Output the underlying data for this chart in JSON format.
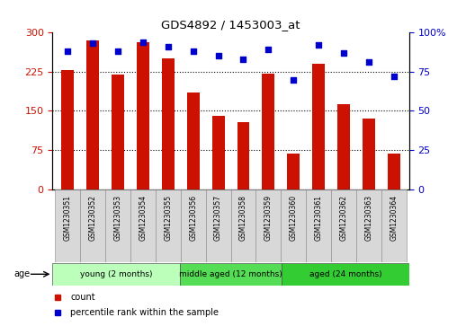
{
  "title": "GDS4892 / 1453003_at",
  "samples": [
    "GSM1230351",
    "GSM1230352",
    "GSM1230353",
    "GSM1230354",
    "GSM1230355",
    "GSM1230356",
    "GSM1230357",
    "GSM1230358",
    "GSM1230359",
    "GSM1230360",
    "GSM1230361",
    "GSM1230362",
    "GSM1230363",
    "GSM1230364"
  ],
  "counts": [
    228,
    285,
    220,
    282,
    250,
    185,
    140,
    128,
    222,
    68,
    240,
    163,
    135,
    68
  ],
  "percentiles": [
    88,
    93,
    88,
    94,
    91,
    88,
    85,
    83,
    89,
    70,
    92,
    87,
    81,
    72
  ],
  "bar_color": "#cc1100",
  "dot_color": "#0000cc",
  "ylim_left": [
    0,
    300
  ],
  "ylim_right": [
    0,
    100
  ],
  "yticks_left": [
    0,
    75,
    150,
    225,
    300
  ],
  "yticks_right": [
    0,
    25,
    50,
    75,
    100
  ],
  "groups": [
    {
      "label": "young (2 months)",
      "start": 0,
      "end": 5,
      "color": "#bbffbb"
    },
    {
      "label": "middle aged (12 months)",
      "start": 5,
      "end": 9,
      "color": "#55dd55"
    },
    {
      "label": "aged (24 months)",
      "start": 9,
      "end": 14,
      "color": "#33cc33"
    }
  ],
  "legend_items": [
    {
      "label": "count",
      "color": "#cc1100"
    },
    {
      "label": "percentile rank within the sample",
      "color": "#0000cc"
    }
  ],
  "age_label": "age",
  "background_color": "#ffffff",
  "tick_label_color_left": "#cc1100",
  "tick_label_color_right": "#0000cc"
}
